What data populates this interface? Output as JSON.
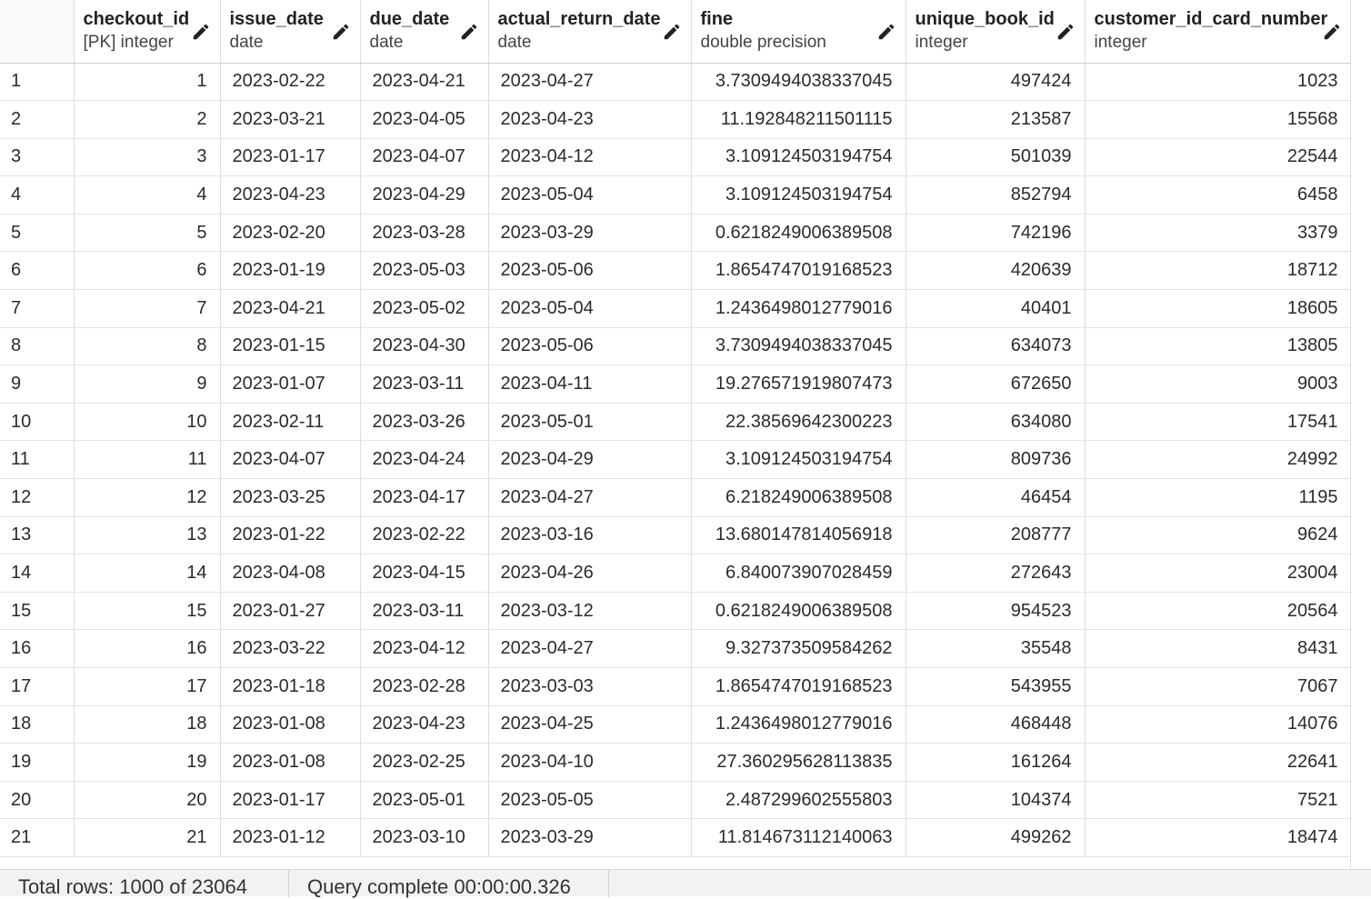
{
  "columns": [
    {
      "name": "",
      "type": ""
    },
    {
      "name": "checkout_id",
      "type": "[PK] integer"
    },
    {
      "name": "issue_date",
      "type": "date"
    },
    {
      "name": "due_date",
      "type": "date"
    },
    {
      "name": "actual_return_date",
      "type": "date"
    },
    {
      "name": "fine",
      "type": "double precision"
    },
    {
      "name": "unique_book_id",
      "type": "integer"
    },
    {
      "name": "customer_id_card_number",
      "type": "integer"
    }
  ],
  "rows": [
    [
      "1",
      "1",
      "2023-02-22",
      "2023-04-21",
      "2023-04-27",
      "3.7309494038337045",
      "497424",
      "1023"
    ],
    [
      "2",
      "2",
      "2023-03-21",
      "2023-04-05",
      "2023-04-23",
      "11.192848211501115",
      "213587",
      "15568"
    ],
    [
      "3",
      "3",
      "2023-01-17",
      "2023-04-07",
      "2023-04-12",
      "3.109124503194754",
      "501039",
      "22544"
    ],
    [
      "4",
      "4",
      "2023-04-23",
      "2023-04-29",
      "2023-05-04",
      "3.109124503194754",
      "852794",
      "6458"
    ],
    [
      "5",
      "5",
      "2023-02-20",
      "2023-03-28",
      "2023-03-29",
      "0.6218249006389508",
      "742196",
      "3379"
    ],
    [
      "6",
      "6",
      "2023-01-19",
      "2023-05-03",
      "2023-05-06",
      "1.8654747019168523",
      "420639",
      "18712"
    ],
    [
      "7",
      "7",
      "2023-04-21",
      "2023-05-02",
      "2023-05-04",
      "1.2436498012779016",
      "40401",
      "18605"
    ],
    [
      "8",
      "8",
      "2023-01-15",
      "2023-04-30",
      "2023-05-06",
      "3.7309494038337045",
      "634073",
      "13805"
    ],
    [
      "9",
      "9",
      "2023-01-07",
      "2023-03-11",
      "2023-04-11",
      "19.276571919807473",
      "672650",
      "9003"
    ],
    [
      "10",
      "10",
      "2023-02-11",
      "2023-03-26",
      "2023-05-01",
      "22.38569642300223",
      "634080",
      "17541"
    ],
    [
      "11",
      "11",
      "2023-04-07",
      "2023-04-24",
      "2023-04-29",
      "3.109124503194754",
      "809736",
      "24992"
    ],
    [
      "12",
      "12",
      "2023-03-25",
      "2023-04-17",
      "2023-04-27",
      "6.218249006389508",
      "46454",
      "1195"
    ],
    [
      "13",
      "13",
      "2023-01-22",
      "2023-02-22",
      "2023-03-16",
      "13.680147814056918",
      "208777",
      "9624"
    ],
    [
      "14",
      "14",
      "2023-04-08",
      "2023-04-15",
      "2023-04-26",
      "6.840073907028459",
      "272643",
      "23004"
    ],
    [
      "15",
      "15",
      "2023-01-27",
      "2023-03-11",
      "2023-03-12",
      "0.6218249006389508",
      "954523",
      "20564"
    ],
    [
      "16",
      "16",
      "2023-03-22",
      "2023-04-12",
      "2023-04-27",
      "9.327373509584262",
      "35548",
      "8431"
    ],
    [
      "17",
      "17",
      "2023-01-18",
      "2023-02-28",
      "2023-03-03",
      "1.8654747019168523",
      "543955",
      "7067"
    ],
    [
      "18",
      "18",
      "2023-01-08",
      "2023-04-23",
      "2023-04-25",
      "1.2436498012779016",
      "468448",
      "14076"
    ],
    [
      "19",
      "19",
      "2023-01-08",
      "2023-02-25",
      "2023-04-10",
      "27.360295628113835",
      "161264",
      "22641"
    ],
    [
      "20",
      "20",
      "2023-01-17",
      "2023-05-01",
      "2023-05-05",
      "2.487299602555803",
      "104374",
      "7521"
    ],
    [
      "21",
      "21",
      "2023-01-12",
      "2023-03-10",
      "2023-03-29",
      "11.814673112140063",
      "499262",
      "18474"
    ]
  ],
  "status": {
    "total_rows": "Total rows: 1000 of 23064",
    "query_status": "Query complete 00:00:00.326"
  }
}
